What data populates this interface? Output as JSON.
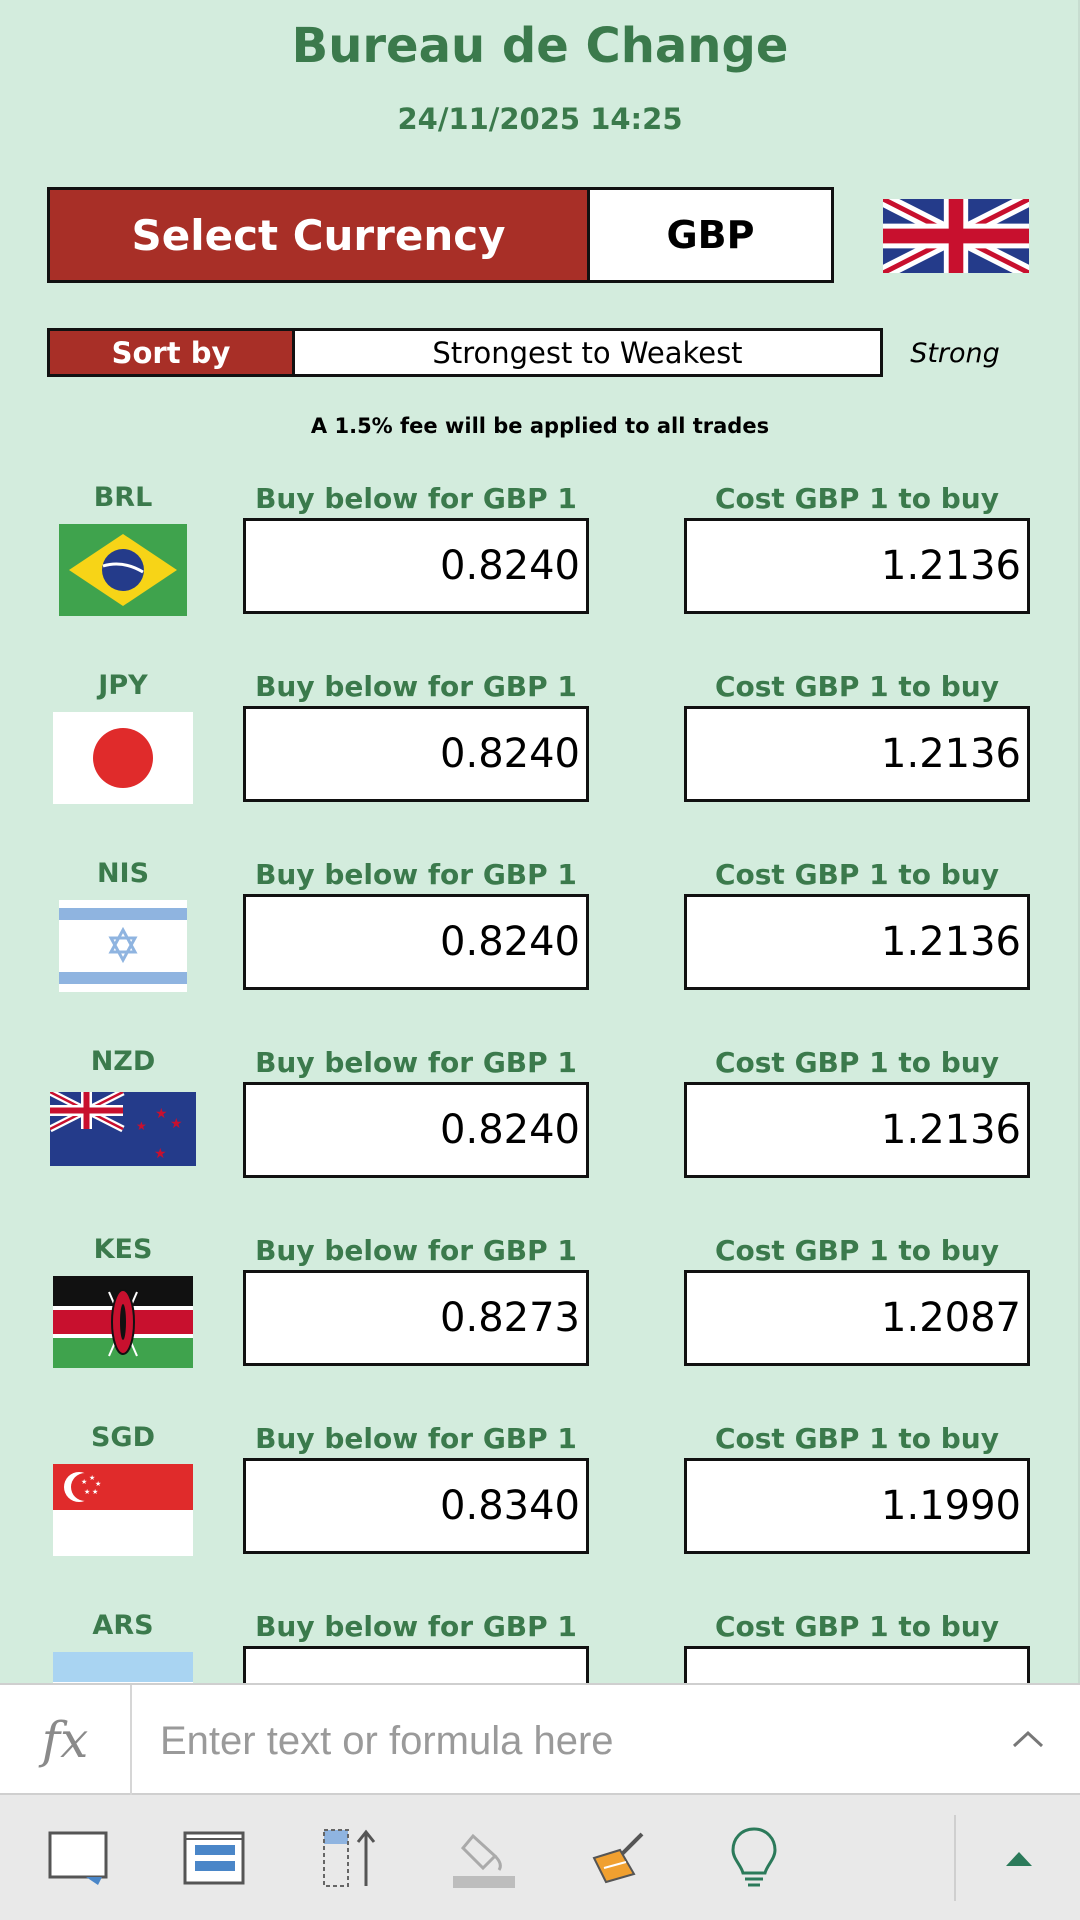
{
  "header": {
    "title": "Bureau de Change",
    "datetime": "24/11/2025 14:25"
  },
  "currency_select": {
    "label": "Select Currency",
    "value": "GBP",
    "flag_icon": "uk-flag-icon"
  },
  "sort": {
    "label": "Sort by",
    "value": "Strongest to Weakest",
    "indicator": "Strong"
  },
  "fee_note": "A 1.5% fee will be applied to all trades",
  "rows": [
    {
      "code": "BRL",
      "buy_label": "Buy below for GBP 1",
      "buy_value": "0.8240",
      "cost_label": "Cost GBP 1 to buy",
      "cost_value": "1.2136",
      "flag_icon": "brazil-flag-icon"
    },
    {
      "code": "JPY",
      "buy_label": "Buy below for GBP 1",
      "buy_value": "0.8240",
      "cost_label": "Cost GBP 1 to buy",
      "cost_value": "1.2136",
      "flag_icon": "japan-flag-icon"
    },
    {
      "code": "NIS",
      "buy_label": "Buy below for GBP 1",
      "buy_value": "0.8240",
      "cost_label": "Cost GBP 1 to buy",
      "cost_value": "1.2136",
      "flag_icon": "israel-flag-icon"
    },
    {
      "code": "NZD",
      "buy_label": "Buy below for GBP 1",
      "buy_value": "0.8240",
      "cost_label": "Cost GBP 1 to buy",
      "cost_value": "1.2136",
      "flag_icon": "new-zealand-flag-icon"
    },
    {
      "code": "KES",
      "buy_label": "Buy below for GBP 1",
      "buy_value": "0.8273",
      "cost_label": "Cost GBP 1 to buy",
      "cost_value": "1.2087",
      "flag_icon": "kenya-flag-icon"
    },
    {
      "code": "SGD",
      "buy_label": "Buy below for GBP 1",
      "buy_value": "0.8340",
      "cost_label": "Cost GBP 1 to buy",
      "cost_value": "1.1990",
      "flag_icon": "singapore-flag-icon"
    },
    {
      "code": "ARS",
      "buy_label": "Buy below for GBP 1",
      "buy_value": "",
      "cost_label": "Cost GBP 1 to buy",
      "cost_value": "",
      "flag_icon": "argentina-flag-icon"
    }
  ],
  "formula_bar": {
    "fx_label": "fx",
    "placeholder": "Enter text or formula here"
  },
  "toolbar": {
    "buttons": [
      "comment-icon",
      "freeze-panes-icon",
      "sort-ascending-icon",
      "fill-color-icon",
      "format-painter-icon",
      "lightbulb-icon"
    ],
    "expand_icon": "expand-up-icon"
  },
  "colors": {
    "background": "#d3ecdd",
    "accent_red": "#a82f27",
    "accent_green": "#3b7a4c"
  }
}
